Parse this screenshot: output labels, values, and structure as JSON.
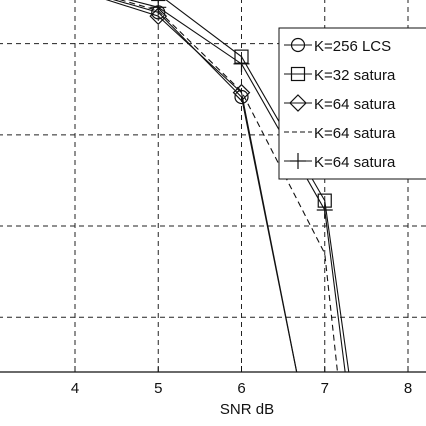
{
  "chart_data": {
    "type": "line",
    "xlabel": "SNR dB",
    "ylabel": "",
    "xlim": [
      3.0,
      8.2
    ],
    "ylim_log": [
      -4.6,
      -0.5
    ],
    "y_scale": "log",
    "x_ticks": [
      4,
      5,
      6,
      7,
      8
    ],
    "x_tick_labels": [
      "4",
      "5",
      "6",
      "7",
      "8"
    ],
    "grid": true,
    "legend_position": "top-right",
    "series": [
      {
        "name": "K=256 LCS",
        "marker": "circle",
        "dash": "solid",
        "x": [
          3.0,
          4,
          5,
          6,
          6.75
        ],
        "y": [
          0.48,
          0.4,
          0.22,
          0.026,
          1e-05
        ]
      },
      {
        "name": "K=32 satura",
        "marker": "square",
        "dash": "solid",
        "x": [
          3.0,
          4,
          5,
          6,
          7,
          7.35
        ],
        "y": [
          0.5,
          0.45,
          0.35,
          0.072,
          0.0019,
          1e-05
        ]
      },
      {
        "name": "K=64 satura",
        "marker": "diamond",
        "dash": "solid",
        "x": [
          3.0,
          4,
          5,
          6,
          6.75
        ],
        "y": [
          0.48,
          0.39,
          0.2,
          0.029,
          1e-05
        ]
      },
      {
        "name": "K=64 satura",
        "marker": "none",
        "dash": "dashed",
        "x": [
          3.0,
          4,
          5,
          6,
          7,
          7.2
        ],
        "y": [
          0.49,
          0.42,
          0.23,
          0.03,
          0.0005,
          1e-05
        ]
      },
      {
        "name": "K=64 satura",
        "marker": "plus",
        "dash": "solid",
        "x": [
          3.0,
          4,
          5,
          6,
          7,
          7.3
        ],
        "y": [
          0.5,
          0.43,
          0.25,
          0.06,
          0.0015,
          1e-05
        ]
      }
    ]
  }
}
